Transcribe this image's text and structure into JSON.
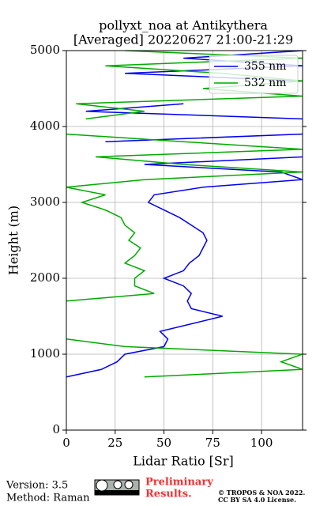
{
  "chart_data": {
    "type": "line",
    "title": [
      "pollyxt_noa at Antikythera",
      "[Averaged] 20220627 21:00-21:29"
    ],
    "x_label": "Lidar Ratio [Sr]",
    "y_label": "Height (m)",
    "y": [
      700,
      800,
      900,
      1000,
      1100,
      1200,
      1300,
      1400,
      1500,
      1600,
      1700,
      1800,
      1900,
      2000,
      2100,
      2200,
      2300,
      2400,
      2500,
      2600,
      2700,
      2800,
      2900,
      3000,
      3100,
      3200,
      3300,
      3400,
      3500,
      3600,
      3700,
      3800,
      3900,
      4000,
      4100,
      4200,
      4300,
      4400,
      4500,
      4600,
      4700,
      4800,
      4900,
      5000
    ],
    "series": [
      {
        "name": "355 nm",
        "color": "#0000ee",
        "values": [
          0,
          18,
          26,
          30,
          50,
          52,
          48,
          64,
          80,
          64,
          62,
          64,
          60,
          50,
          60,
          63,
          68,
          70,
          72,
          70,
          64,
          58,
          50,
          42,
          45,
          70,
          121,
          110,
          40,
          121,
          null,
          20,
          121,
          null,
          121,
          10,
          60,
          null,
          null,
          121,
          30,
          121,
          60,
          121
        ]
      },
      {
        "name": "532 nm",
        "color": "#00aa00",
        "values": [
          40,
          121,
          110,
          121,
          30,
          0,
          null,
          null,
          null,
          null,
          0,
          45,
          35,
          35,
          40,
          30,
          35,
          38,
          32,
          35,
          30,
          28,
          20,
          8,
          20,
          0,
          40,
          121,
          60,
          15,
          121,
          60,
          0,
          null,
          10,
          40,
          5,
          121,
          70,
          121,
          80,
          20,
          121,
          30
        ]
      }
    ],
    "xlim": [
      0,
      121
    ],
    "ylim": [
      0,
      5000
    ],
    "xticks": [
      0,
      25,
      50,
      75,
      100
    ],
    "yticks": [
      0,
      1000,
      2000,
      3000,
      4000,
      5000
    ],
    "grid": true,
    "legend": "upper right"
  },
  "footer": {
    "version": "Version: 3.5",
    "method": "Method: Raman",
    "notice": [
      "Preliminary",
      "Results."
    ],
    "copyright": [
      "© TROPOS & NOA 2022.",
      "CC BY SA 4.0 License."
    ]
  }
}
